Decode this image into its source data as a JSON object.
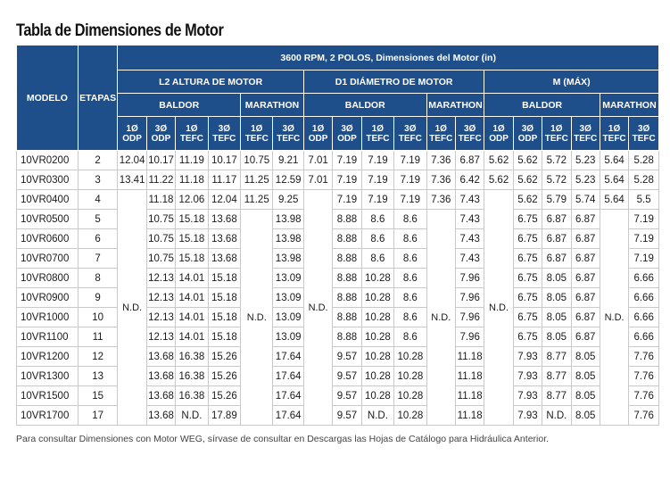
{
  "title": "Tabla de Dimensiones de Motor",
  "headers": {
    "modelo": "MODELO",
    "etapas": "ETAPAS",
    "top": "3600 RPM, 2 POLOS, Dimensiones del Motor (in)",
    "groups": [
      "L2 ALTURA DE MOTOR",
      "D1 DIÁMETRO DE MOTOR",
      "M (MÁX)"
    ],
    "baldor": "BALDOR",
    "marathon": "MARATHON",
    "cols": [
      [
        "1Ø",
        "ODP"
      ],
      [
        "3Ø",
        "ODP"
      ],
      [
        "1Ø",
        "TEFC"
      ],
      [
        "3Ø",
        "TEFC"
      ],
      [
        "1Ø",
        "TEFC"
      ],
      [
        "3Ø",
        "TEFC"
      ]
    ]
  },
  "nd": "N.D.",
  "rows": [
    {
      "model": "10VR0200",
      "etapas": "2",
      "l2": [
        "12.04",
        "10.17",
        "11.19",
        "10.17",
        "10.75",
        "9.21"
      ],
      "d1": [
        "7.01",
        "7.19",
        "7.19",
        "7.19",
        "7.36",
        "6.87"
      ],
      "m": [
        "5.62",
        "5.62",
        "5.72",
        "5.23",
        "5.64",
        "5.28"
      ]
    },
    {
      "model": "10VR0300",
      "etapas": "3",
      "l2": [
        "13.41",
        "11.22",
        "11.18",
        "11.17",
        "11.25",
        "12.59"
      ],
      "d1": [
        "7.01",
        "7.19",
        "7.19",
        "7.19",
        "7.36",
        "6.42"
      ],
      "m": [
        "5.62",
        "5.62",
        "5.72",
        "5.23",
        "5.64",
        "5.28"
      ]
    },
    {
      "model": "10VR0400",
      "etapas": "4",
      "l2": [
        "",
        "11.18",
        "12.06",
        "12.04",
        "11.25",
        "9.25"
      ],
      "d1": [
        "",
        "7.19",
        "7.19",
        "7.19",
        "7.36",
        "7.43"
      ],
      "m": [
        "",
        "5.62",
        "5.79",
        "5.74",
        "5.64",
        "5.5"
      ]
    },
    {
      "model": "10VR0500",
      "etapas": "5",
      "l2": [
        "",
        "10.75",
        "15.18",
        "13.68",
        "",
        "13.98"
      ],
      "d1": [
        "",
        "8.88",
        "8.6",
        "8.6",
        "",
        "7.43"
      ],
      "m": [
        "",
        "6.75",
        "6.87",
        "6.87",
        "",
        "7.19"
      ]
    },
    {
      "model": "10VR0600",
      "etapas": "6",
      "l2": [
        "",
        "10.75",
        "15.18",
        "13.68",
        "",
        "13.98"
      ],
      "d1": [
        "",
        "8.88",
        "8.6",
        "8.6",
        "",
        "7.43"
      ],
      "m": [
        "",
        "6.75",
        "6.87",
        "6.87",
        "",
        "7.19"
      ]
    },
    {
      "model": "10VR0700",
      "etapas": "7",
      "l2": [
        "",
        "10.75",
        "15.18",
        "13.68",
        "",
        "13.98"
      ],
      "d1": [
        "",
        "8.88",
        "8.6",
        "8.6",
        "",
        "7.43"
      ],
      "m": [
        "",
        "6.75",
        "6.87",
        "6.87",
        "",
        "7.19"
      ]
    },
    {
      "model": "10VR0800",
      "etapas": "8",
      "l2": [
        "",
        "12.13",
        "14.01",
        "15.18",
        "",
        "13.09"
      ],
      "d1": [
        "",
        "8.88",
        "10.28",
        "8.6",
        "",
        "7.96"
      ],
      "m": [
        "",
        "6.75",
        "8.05",
        "6.87",
        "",
        "6.66"
      ]
    },
    {
      "model": "10VR0900",
      "etapas": "9",
      "l2": [
        "",
        "12.13",
        "14.01",
        "15.18",
        "",
        "13.09"
      ],
      "d1": [
        "",
        "8.88",
        "10.28",
        "8.6",
        "",
        "7.96"
      ],
      "m": [
        "",
        "6.75",
        "8.05",
        "6.87",
        "",
        "6.66"
      ]
    },
    {
      "model": "10VR1000",
      "etapas": "10",
      "l2": [
        "",
        "12.13",
        "14.01",
        "15.18",
        "",
        "13.09"
      ],
      "d1": [
        "",
        "8.88",
        "10.28",
        "8.6",
        "",
        "7.96"
      ],
      "m": [
        "",
        "6.75",
        "8.05",
        "6.87",
        "",
        "6.66"
      ]
    },
    {
      "model": "10VR1100",
      "etapas": "11",
      "l2": [
        "",
        "12.13",
        "14.01",
        "15.18",
        "",
        "13.09"
      ],
      "d1": [
        "",
        "8.88",
        "10.28",
        "8.6",
        "",
        "7.96"
      ],
      "m": [
        "",
        "6.75",
        "8.05",
        "6.87",
        "",
        "6.66"
      ]
    },
    {
      "model": "10VR1200",
      "etapas": "12",
      "l2": [
        "",
        "13.68",
        "16.38",
        "15.26",
        "",
        "17.64"
      ],
      "d1": [
        "",
        "9.57",
        "10.28",
        "10.28",
        "",
        "11.18"
      ],
      "m": [
        "",
        "7.93",
        "8.77",
        "8.05",
        "",
        "7.76"
      ]
    },
    {
      "model": "10VR1300",
      "etapas": "13",
      "l2": [
        "",
        "13.68",
        "16.38",
        "15.26",
        "",
        "17.64"
      ],
      "d1": [
        "",
        "9.57",
        "10.28",
        "10.28",
        "",
        "11.18"
      ],
      "m": [
        "",
        "7.93",
        "8.77",
        "8.05",
        "",
        "7.76"
      ]
    },
    {
      "model": "10VR1500",
      "etapas": "15",
      "l2": [
        "",
        "13.68",
        "16.38",
        "15.26",
        "",
        "17.64"
      ],
      "d1": [
        "",
        "9.57",
        "10.28",
        "10.28",
        "",
        "11.18"
      ],
      "m": [
        "",
        "7.93",
        "8.77",
        "8.05",
        "",
        "7.76"
      ]
    },
    {
      "model": "10VR1700",
      "etapas": "17",
      "l2": [
        "",
        "13.68",
        "N.D.",
        "17.89",
        "",
        "17.64"
      ],
      "d1": [
        "",
        "9.57",
        "N.D.",
        "10.28",
        "",
        "11.18"
      ],
      "m": [
        "",
        "7.93",
        "N.D.",
        "8.05",
        "",
        "7.76"
      ]
    }
  ],
  "footnote": "Para consultar Dimensiones con Motor WEG, sírvase de consultar en Descargas las Hojas de Catálogo para Hidráulica Anterior."
}
